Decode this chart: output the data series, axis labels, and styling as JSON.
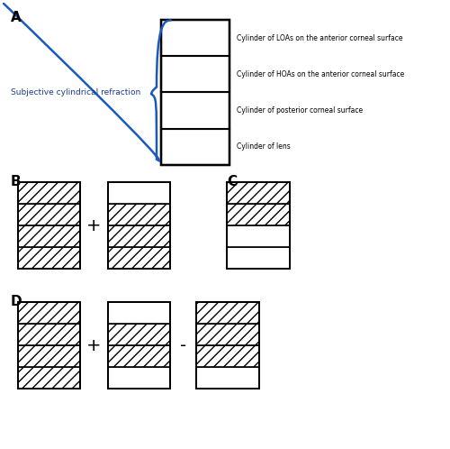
{
  "fig_width": 5.0,
  "fig_height": 4.98,
  "bg_color": "#ffffff",
  "label_A": "A",
  "label_B": "B",
  "label_C": "C",
  "label_D": "D",
  "subjective_text": "Subjective cylindrical refraction",
  "row_labels": [
    "Cylinder of LOAs on the anterior corneal surface",
    "Cylinder of HOAs on the anterior corneal surface",
    "Cylinder of posterior corneal surface",
    "Cylinder of lens"
  ],
  "label_color": "#1a3a8a",
  "bracket_color": "#1a5abf",
  "box_edge_color": "#000000",
  "hatch_pattern": "///",
  "lw": 1.2,
  "operator_fontsize": 14,
  "section_label_fontsize": 11,
  "row_label_fontsize": 5.5,
  "subjective_fontsize": 6.5
}
